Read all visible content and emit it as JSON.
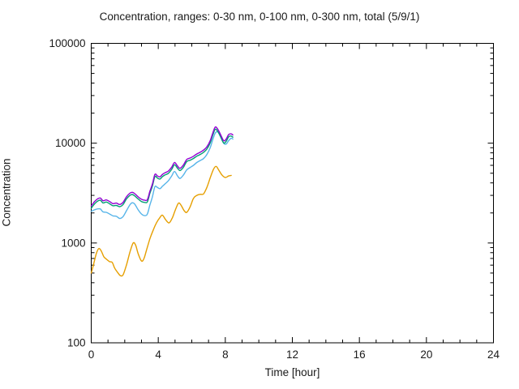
{
  "title": "Concentration, ranges: 0-30 nm, 0-100 nm, 0-300 nm, total (5/9/1)",
  "chart_data": {
    "type": "line",
    "title": "Concentration, ranges: 0-30 nm, 0-100 nm, 0-300 nm, total (5/9/1)",
    "xlabel": "Time [hour]",
    "ylabel": "Concentration",
    "grid": false,
    "legend_position": "none",
    "x_axis": {
      "min": 0,
      "max": 24,
      "major_ticks": [
        0,
        4,
        8,
        12,
        16,
        20,
        24
      ],
      "minor_tick_step": 1,
      "tick_labels": [
        "0",
        "4",
        "8",
        "12",
        "16",
        "20",
        "24"
      ]
    },
    "y_axis": {
      "scale": "log",
      "min": 100,
      "max": 100000,
      "major_ticks": [
        100,
        1000,
        10000,
        100000
      ],
      "tick_labels": [
        "100",
        "1000",
        "10000",
        "100000"
      ],
      "log_minor_ticks": true
    },
    "series": [
      {
        "name": "0-30 nm",
        "color": "#e69f00",
        "x": [
          0,
          0.15,
          0.3,
          0.45,
          0.6,
          0.75,
          0.9,
          1.1,
          1.25,
          1.4,
          1.6,
          1.75,
          1.9,
          2.1,
          2.3,
          2.5,
          2.65,
          2.8,
          3.0,
          3.15,
          3.3,
          3.5,
          3.7,
          3.9,
          4.1,
          4.25,
          4.45,
          4.65,
          4.85,
          5.0,
          5.2,
          5.35,
          5.55,
          5.7,
          5.9,
          6.1,
          6.3,
          6.5,
          6.7,
          6.9,
          7.1,
          7.3,
          7.45,
          7.6,
          7.8,
          8.0,
          8.2,
          8.35
        ],
        "y": [
          500,
          620,
          780,
          880,
          830,
          730,
          690,
          650,
          640,
          560,
          500,
          470,
          480,
          600,
          800,
          1000,
          950,
          780,
          660,
          700,
          850,
          1100,
          1350,
          1600,
          1800,
          1900,
          1700,
          1590,
          1800,
          2100,
          2500,
          2400,
          2100,
          2030,
          2300,
          2800,
          3000,
          3070,
          3100,
          3600,
          4500,
          5500,
          5860,
          5400,
          4800,
          4530,
          4700,
          4750
        ]
      },
      {
        "name": "0-100 nm",
        "color": "#56b4e9",
        "x": [
          0,
          0.2,
          0.4,
          0.55,
          0.7,
          0.9,
          1.1,
          1.3,
          1.5,
          1.7,
          1.9,
          2.1,
          2.3,
          2.45,
          2.6,
          2.8,
          3.0,
          3.2,
          3.35,
          3.5,
          3.65,
          3.8,
          3.95,
          4.1,
          4.25,
          4.4,
          4.6,
          4.8,
          4.97,
          5.15,
          5.3,
          5.5,
          5.7,
          5.9,
          6.1,
          6.3,
          6.5,
          6.7,
          6.9,
          7.1,
          7.25,
          7.4,
          7.55,
          7.7,
          7.9,
          8.05,
          8.2,
          8.35,
          8.45
        ],
        "y": [
          2080,
          2150,
          2200,
          2190,
          2050,
          2030,
          1950,
          1870,
          1850,
          1760,
          1840,
          2100,
          2400,
          2530,
          2450,
          2150,
          1950,
          1880,
          1950,
          2400,
          2900,
          3670,
          3600,
          3500,
          3700,
          3900,
          4200,
          4700,
          5200,
          4700,
          4430,
          4800,
          5400,
          5700,
          6000,
          6400,
          6700,
          7000,
          7700,
          9000,
          10800,
          12600,
          13000,
          11800,
          10000,
          9800,
          10600,
          11200,
          11000
        ]
      },
      {
        "name": "0-300 nm",
        "color": "#009e73",
        "x": [
          0,
          0.2,
          0.4,
          0.55,
          0.7,
          0.9,
          1.1,
          1.3,
          1.5,
          1.7,
          1.9,
          2.1,
          2.3,
          2.45,
          2.6,
          2.8,
          3.0,
          3.2,
          3.35,
          3.5,
          3.65,
          3.8,
          3.95,
          4.1,
          4.25,
          4.4,
          4.6,
          4.8,
          4.97,
          5.15,
          5.3,
          5.5,
          5.7,
          5.9,
          6.1,
          6.3,
          6.5,
          6.7,
          6.9,
          7.1,
          7.25,
          7.4,
          7.55,
          7.7,
          7.9,
          8.05,
          8.2,
          8.35,
          8.45
        ],
        "y": [
          2230,
          2470,
          2640,
          2680,
          2520,
          2570,
          2470,
          2360,
          2380,
          2310,
          2430,
          2760,
          2990,
          3060,
          2960,
          2760,
          2600,
          2550,
          2580,
          3140,
          3710,
          4630,
          4470,
          4370,
          4630,
          4800,
          4990,
          5460,
          6080,
          5610,
          5320,
          5740,
          6540,
          6750,
          7030,
          7410,
          7700,
          8090,
          8740,
          10070,
          11970,
          13780,
          13110,
          11780,
          10070,
          10450,
          11590,
          11780,
          11500
        ]
      },
      {
        "name": "total",
        "color": "#9400d3",
        "x": [
          0,
          0.2,
          0.4,
          0.55,
          0.7,
          0.9,
          1.1,
          1.3,
          1.5,
          1.7,
          1.9,
          2.1,
          2.3,
          2.45,
          2.6,
          2.8,
          3.0,
          3.2,
          3.35,
          3.5,
          3.65,
          3.8,
          3.95,
          4.1,
          4.25,
          4.4,
          4.6,
          4.8,
          4.97,
          5.15,
          5.3,
          5.5,
          5.7,
          5.9,
          6.1,
          6.3,
          6.5,
          6.7,
          6.9,
          7.1,
          7.25,
          7.4,
          7.55,
          7.7,
          7.9,
          8.05,
          8.2,
          8.35,
          8.45
        ],
        "y": [
          2350,
          2600,
          2780,
          2820,
          2650,
          2700,
          2600,
          2480,
          2510,
          2430,
          2560,
          2900,
          3150,
          3220,
          3120,
          2900,
          2740,
          2680,
          2720,
          3300,
          3900,
          4870,
          4700,
          4600,
          4870,
          5050,
          5250,
          5750,
          6400,
          5900,
          5600,
          6040,
          6880,
          7100,
          7400,
          7800,
          8100,
          8520,
          9200,
          10600,
          12600,
          14500,
          13800,
          12400,
          10600,
          11000,
          12200,
          12400,
          12100
        ]
      }
    ],
    "axis_color": "#000000",
    "background_color": "#ffffff"
  }
}
